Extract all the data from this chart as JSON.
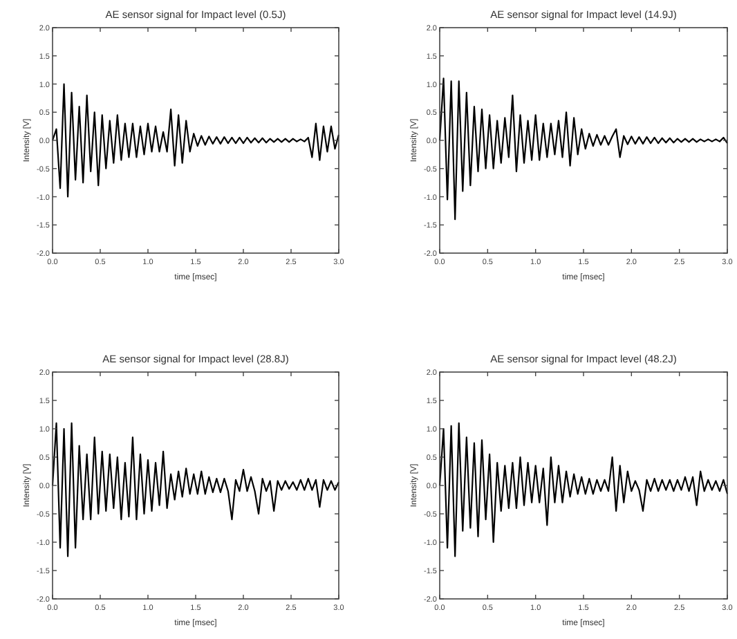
{
  "chart_data": [
    {
      "type": "line",
      "title": "AE sensor signal for Impact level (0.5J)",
      "xlabel": "time [msec]",
      "ylabel": "Intensity [V]",
      "color": "#000000",
      "xlim": [
        0,
        3
      ],
      "ylim": [
        -2,
        2
      ],
      "xticks": [
        {
          "value": 0,
          "label": "0.0"
        },
        {
          "value": 0.5,
          "label": "0.5"
        },
        {
          "value": 1,
          "label": "1.0"
        },
        {
          "value": 1.5,
          "label": "1.5"
        },
        {
          "value": 2,
          "label": "2.0"
        },
        {
          "value": 2.5,
          "label": "2.5"
        },
        {
          "value": 3,
          "label": "3.0"
        }
      ],
      "yticks": [
        {
          "value": -2,
          "label": "-2.0"
        },
        {
          "value": -1.5,
          "label": "-1.5"
        },
        {
          "value": -1,
          "label": "-1.0"
        },
        {
          "value": -0.5,
          "label": "-0.5"
        },
        {
          "value": 0,
          "label": "0.0"
        },
        {
          "value": 0.5,
          "label": "0.5"
        },
        {
          "value": 1,
          "label": "1.0"
        },
        {
          "value": 1.5,
          "label": "1.5"
        },
        {
          "value": 2,
          "label": "2.0"
        }
      ],
      "x": [
        0,
        0.04,
        0.08,
        0.12,
        0.16,
        0.2,
        0.24,
        0.28,
        0.32,
        0.36,
        0.4,
        0.44,
        0.48,
        0.52,
        0.56,
        0.6,
        0.64,
        0.68,
        0.72,
        0.76,
        0.8,
        0.84,
        0.88,
        0.92,
        0.96,
        1,
        1.04,
        1.08,
        1.12,
        1.16,
        1.2,
        1.24,
        1.28,
        1.32,
        1.36,
        1.4,
        1.44,
        1.48,
        1.52,
        1.56,
        1.6,
        1.64,
        1.68,
        1.72,
        1.76,
        1.8,
        1.84,
        1.88,
        1.92,
        1.96,
        2,
        2.04,
        2.08,
        2.12,
        2.16,
        2.2,
        2.24,
        2.28,
        2.32,
        2.36,
        2.4,
        2.44,
        2.48,
        2.52,
        2.56,
        2.6,
        2.64,
        2.68,
        2.72,
        2.76,
        2.8,
        2.84,
        2.88,
        2.92,
        2.96,
        3
      ],
      "values": [
        0,
        0.2,
        -0.85,
        1.0,
        -1.0,
        0.85,
        -0.7,
        0.6,
        -0.75,
        0.8,
        -0.55,
        0.5,
        -0.8,
        0.45,
        -0.5,
        0.35,
        -0.4,
        0.45,
        -0.35,
        0.3,
        -0.3,
        0.3,
        -0.3,
        0.25,
        -0.25,
        0.3,
        -0.2,
        0.25,
        -0.2,
        0.15,
        -0.2,
        0.55,
        -0.45,
        0.45,
        -0.4,
        0.35,
        -0.2,
        0.12,
        -0.1,
        0.08,
        -0.08,
        0.07,
        -0.06,
        0.06,
        -0.06,
        0.06,
        -0.05,
        0.05,
        -0.05,
        0.05,
        -0.05,
        0.05,
        -0.04,
        0.04,
        -0.04,
        0.04,
        -0.04,
        0.03,
        -0.03,
        0.03,
        -0.03,
        0.03,
        -0.03,
        0.03,
        -0.02,
        0.02,
        -0.02,
        0.05,
        -0.3,
        0.3,
        -0.35,
        0.25,
        -0.2,
        0.25,
        -0.15,
        0.1
      ]
    },
    {
      "type": "line",
      "title": "AE sensor signal for Impact level (14.9J)",
      "xlabel": "time [msec]",
      "ylabel": "Intensity [V]",
      "color": "#000000",
      "xlim": [
        0,
        3
      ],
      "ylim": [
        -2,
        2
      ],
      "xticks": [
        {
          "value": 0,
          "label": "0.0"
        },
        {
          "value": 0.5,
          "label": "0.5"
        },
        {
          "value": 1,
          "label": "1.0"
        },
        {
          "value": 1.5,
          "label": "1.5"
        },
        {
          "value": 2,
          "label": "2.0"
        },
        {
          "value": 2.5,
          "label": "2.5"
        },
        {
          "value": 3,
          "label": "3.0"
        }
      ],
      "yticks": [
        {
          "value": -2,
          "label": "-2.0"
        },
        {
          "value": -1.5,
          "label": "-1.5"
        },
        {
          "value": -1,
          "label": "-1.0"
        },
        {
          "value": -0.5,
          "label": "-0.5"
        },
        {
          "value": 0,
          "label": "0.0"
        },
        {
          "value": 0.5,
          "label": "0.5"
        },
        {
          "value": 1,
          "label": "1.0"
        },
        {
          "value": 1.5,
          "label": "1.5"
        },
        {
          "value": 2,
          "label": "2.0"
        }
      ],
      "x": [
        0,
        0.04,
        0.08,
        0.12,
        0.16,
        0.2,
        0.24,
        0.28,
        0.32,
        0.36,
        0.4,
        0.44,
        0.48,
        0.52,
        0.56,
        0.6,
        0.64,
        0.68,
        0.72,
        0.76,
        0.8,
        0.84,
        0.88,
        0.92,
        0.96,
        1,
        1.04,
        1.08,
        1.12,
        1.16,
        1.2,
        1.24,
        1.28,
        1.32,
        1.36,
        1.4,
        1.44,
        1.48,
        1.52,
        1.56,
        1.6,
        1.64,
        1.68,
        1.72,
        1.76,
        1.8,
        1.84,
        1.88,
        1.92,
        1.96,
        2,
        2.04,
        2.08,
        2.12,
        2.16,
        2.2,
        2.24,
        2.28,
        2.32,
        2.36,
        2.4,
        2.44,
        2.48,
        2.52,
        2.56,
        2.6,
        2.64,
        2.68,
        2.72,
        2.76,
        2.8,
        2.84,
        2.88,
        2.92,
        2.96,
        3
      ],
      "values": [
        0,
        1.1,
        -1.05,
        1.05,
        -1.4,
        1.05,
        -0.9,
        0.85,
        -0.8,
        0.6,
        -0.55,
        0.55,
        -0.5,
        0.45,
        -0.5,
        0.35,
        -0.4,
        0.4,
        -0.3,
        0.8,
        -0.55,
        0.45,
        -0.4,
        0.35,
        -0.35,
        0.45,
        -0.35,
        0.3,
        -0.3,
        0.3,
        -0.25,
        0.35,
        -0.3,
        0.5,
        -0.45,
        0.4,
        -0.25,
        0.2,
        -0.15,
        0.12,
        -0.1,
        0.1,
        -0.08,
        0.08,
        -0.08,
        0.07,
        0.2,
        -0.3,
        0.08,
        -0.07,
        0.07,
        -0.06,
        0.06,
        -0.06,
        0.06,
        -0.05,
        0.05,
        -0.05,
        0.04,
        -0.04,
        0.04,
        -0.04,
        0.03,
        -0.03,
        0.03,
        -0.03,
        0.03,
        -0.03,
        0.02,
        -0.02,
        0.02,
        -0.02,
        0.02,
        -0.02,
        0.05,
        -0.05
      ]
    },
    {
      "type": "line",
      "title": "AE sensor signal for Impact level (28.8J)",
      "xlabel": "time [msec]",
      "ylabel": "Intensity [V]",
      "color": "#000000",
      "xlim": [
        0,
        3
      ],
      "ylim": [
        -2,
        2
      ],
      "xticks": [
        {
          "value": 0,
          "label": "0.0"
        },
        {
          "value": 0.5,
          "label": "0.5"
        },
        {
          "value": 1,
          "label": "1.0"
        },
        {
          "value": 1.5,
          "label": "1.5"
        },
        {
          "value": 2,
          "label": "2.0"
        },
        {
          "value": 2.5,
          "label": "2.5"
        },
        {
          "value": 3,
          "label": "3.0"
        }
      ],
      "yticks": [
        {
          "value": -2,
          "label": "-2.0"
        },
        {
          "value": -1.5,
          "label": "-1.5"
        },
        {
          "value": -1,
          "label": "-1.0"
        },
        {
          "value": -0.5,
          "label": "-0.5"
        },
        {
          "value": 0,
          "label": "0.0"
        },
        {
          "value": 0.5,
          "label": "0.5"
        },
        {
          "value": 1,
          "label": "1.0"
        },
        {
          "value": 1.5,
          "label": "1.5"
        },
        {
          "value": 2,
          "label": "2.0"
        }
      ],
      "x": [
        0,
        0.04,
        0.08,
        0.12,
        0.16,
        0.2,
        0.24,
        0.28,
        0.32,
        0.36,
        0.4,
        0.44,
        0.48,
        0.52,
        0.56,
        0.6,
        0.64,
        0.68,
        0.72,
        0.76,
        0.8,
        0.84,
        0.88,
        0.92,
        0.96,
        1,
        1.04,
        1.08,
        1.12,
        1.16,
        1.2,
        1.24,
        1.28,
        1.32,
        1.36,
        1.4,
        1.44,
        1.48,
        1.52,
        1.56,
        1.6,
        1.64,
        1.68,
        1.72,
        1.76,
        1.8,
        1.84,
        1.88,
        1.92,
        1.96,
        2,
        2.04,
        2.08,
        2.12,
        2.16,
        2.2,
        2.24,
        2.28,
        2.32,
        2.36,
        2.4,
        2.44,
        2.48,
        2.52,
        2.56,
        2.6,
        2.64,
        2.68,
        2.72,
        2.76,
        2.8,
        2.84,
        2.88,
        2.92,
        2.96,
        3
      ],
      "values": [
        0,
        1.1,
        -1.1,
        1.0,
        -1.25,
        1.1,
        -1.1,
        0.7,
        -0.6,
        0.55,
        -0.6,
        0.85,
        -0.5,
        0.6,
        -0.45,
        0.55,
        -0.4,
        0.5,
        -0.6,
        0.4,
        -0.55,
        0.85,
        -0.6,
        0.55,
        -0.5,
        0.45,
        -0.45,
        0.4,
        -0.35,
        0.6,
        -0.4,
        0.2,
        -0.25,
        0.25,
        -0.2,
        0.3,
        -0.15,
        0.2,
        -0.15,
        0.25,
        -0.15,
        0.15,
        -0.12,
        0.12,
        -0.12,
        0.12,
        -0.1,
        -0.6,
        0.1,
        -0.1,
        0.28,
        -0.1,
        0.15,
        -0.1,
        -0.5,
        0.12,
        -0.1,
        0.08,
        -0.45,
        0.08,
        -0.08,
        0.08,
        -0.06,
        0.06,
        -0.08,
        0.1,
        -0.08,
        0.12,
        -0.08,
        0.1,
        -0.38,
        0.1,
        -0.08,
        0.08,
        -0.08,
        0.06
      ]
    },
    {
      "type": "line",
      "title": "AE sensor signal for Impact level (48.2J)",
      "xlabel": "time [msec]",
      "ylabel": "Intensity [V]",
      "color": "#000000",
      "xlim": [
        0,
        3
      ],
      "ylim": [
        -2,
        2
      ],
      "xticks": [
        {
          "value": 0,
          "label": "0.0"
        },
        {
          "value": 0.5,
          "label": "0.5"
        },
        {
          "value": 1,
          "label": "1.0"
        },
        {
          "value": 1.5,
          "label": "1.5"
        },
        {
          "value": 2,
          "label": "2.0"
        },
        {
          "value": 2.5,
          "label": "2.5"
        },
        {
          "value": 3,
          "label": "3.0"
        }
      ],
      "yticks": [
        {
          "value": -2,
          "label": "-2.0"
        },
        {
          "value": -1.5,
          "label": "-1.5"
        },
        {
          "value": -1,
          "label": "-1.0"
        },
        {
          "value": -0.5,
          "label": "-0.5"
        },
        {
          "value": 0,
          "label": "0.0"
        },
        {
          "value": 0.5,
          "label": "0.5"
        },
        {
          "value": 1,
          "label": "1.0"
        },
        {
          "value": 1.5,
          "label": "1.5"
        },
        {
          "value": 2,
          "label": "2.0"
        }
      ],
      "x": [
        0,
        0.04,
        0.08,
        0.12,
        0.16,
        0.2,
        0.24,
        0.28,
        0.32,
        0.36,
        0.4,
        0.44,
        0.48,
        0.52,
        0.56,
        0.6,
        0.64,
        0.68,
        0.72,
        0.76,
        0.8,
        0.84,
        0.88,
        0.92,
        0.96,
        1,
        1.04,
        1.08,
        1.12,
        1.16,
        1.2,
        1.24,
        1.28,
        1.32,
        1.36,
        1.4,
        1.44,
        1.48,
        1.52,
        1.56,
        1.6,
        1.64,
        1.68,
        1.72,
        1.76,
        1.8,
        1.84,
        1.88,
        1.92,
        1.96,
        2,
        2.04,
        2.08,
        2.12,
        2.16,
        2.2,
        2.24,
        2.28,
        2.32,
        2.36,
        2.4,
        2.44,
        2.48,
        2.52,
        2.56,
        2.6,
        2.64,
        2.68,
        2.72,
        2.76,
        2.8,
        2.84,
        2.88,
        2.92,
        2.96,
        3
      ],
      "values": [
        0,
        1.0,
        -1.1,
        1.05,
        -1.25,
        1.1,
        -0.8,
        0.85,
        -0.75,
        0.75,
        -0.9,
        0.8,
        -0.6,
        0.55,
        -1.0,
        0.4,
        -0.45,
        0.35,
        -0.4,
        0.4,
        -0.4,
        0.5,
        -0.35,
        0.4,
        -0.3,
        0.35,
        -0.3,
        0.3,
        -0.7,
        0.5,
        -0.3,
        0.35,
        -0.3,
        0.25,
        -0.2,
        0.2,
        -0.15,
        0.15,
        -0.15,
        0.12,
        -0.15,
        0.1,
        -0.1,
        0.1,
        -0.1,
        0.5,
        -0.45,
        0.35,
        -0.3,
        0.25,
        -0.1,
        0.08,
        -0.08,
        -0.45,
        0.1,
        -0.1,
        0.12,
        -0.1,
        0.1,
        -0.08,
        0.1,
        -0.1,
        0.1,
        -0.08,
        0.15,
        -0.1,
        0.15,
        -0.35,
        0.25,
        -0.1,
        0.1,
        -0.08,
        0.08,
        -0.1,
        0.1,
        -0.15
      ]
    }
  ]
}
